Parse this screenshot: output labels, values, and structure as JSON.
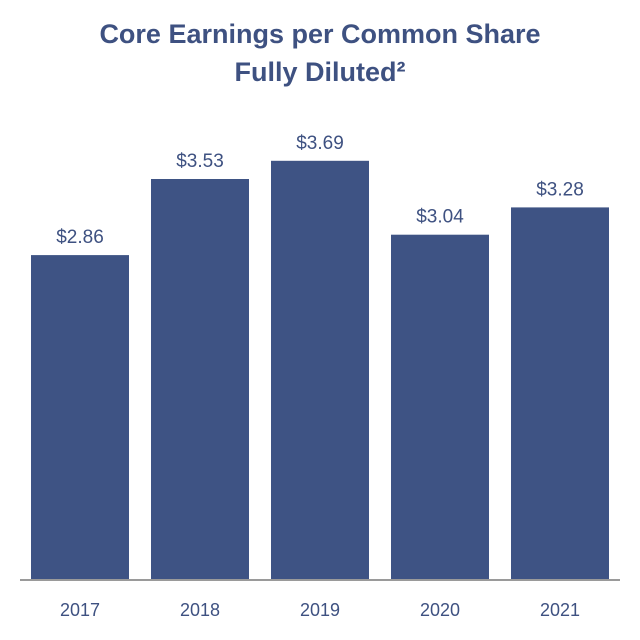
{
  "chart_data": {
    "type": "bar",
    "title": "Core Earnings per Common Share",
    "subtitle": "Fully Diluted²",
    "categories": [
      "2017",
      "2018",
      "2019",
      "2020",
      "2021"
    ],
    "values": [
      2.86,
      3.53,
      3.69,
      3.04,
      3.28
    ],
    "data_labels": [
      "$2.86",
      "$3.53",
      "$3.69",
      "$3.04",
      "$3.28"
    ],
    "xlabel": "",
    "ylabel": "",
    "ylim": [
      0,
      4.0
    ],
    "grid": false,
    "legend": "none",
    "colors": {
      "bar": "#3e5384",
      "text": "#3e5181",
      "axis": "#9a9a9a"
    }
  }
}
